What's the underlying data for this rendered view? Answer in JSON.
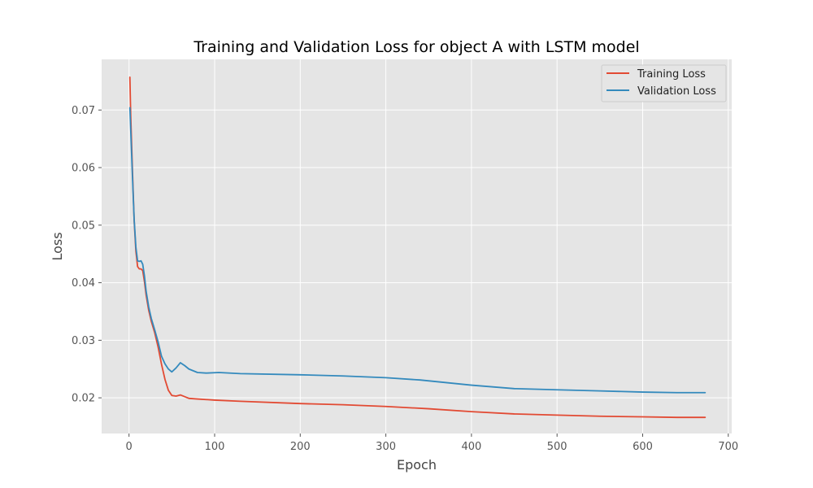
{
  "chart_data": {
    "type": "line",
    "title": "Training and Validation Loss for object A with LSTM model",
    "xlabel": "Epoch",
    "ylabel": "Loss",
    "xlim": [
      -32,
      704
    ],
    "ylim": [
      0.0138,
      0.0788
    ],
    "xticks": [
      0,
      100,
      200,
      300,
      400,
      500,
      600,
      700
    ],
    "xtick_labels": [
      "0",
      "100",
      "200",
      "300",
      "400",
      "500",
      "600",
      "700"
    ],
    "yticks": [
      0.02,
      0.03,
      0.04,
      0.05,
      0.06,
      0.07
    ],
    "ytick_labels": [
      "0.02",
      "0.03",
      "0.04",
      "0.05",
      "0.06",
      "0.07"
    ],
    "grid": true,
    "legend_position": "top-right",
    "series": [
      {
        "name": "Training Loss",
        "color": "#E24A33",
        "points": [
          [
            1,
            0.0757
          ],
          [
            2,
            0.069
          ],
          [
            4,
            0.0595
          ],
          [
            6,
            0.0508
          ],
          [
            8,
            0.0455
          ],
          [
            10,
            0.0428
          ],
          [
            12,
            0.0424
          ],
          [
            14,
            0.0424
          ],
          [
            16,
            0.0421
          ],
          [
            18,
            0.0402
          ],
          [
            20,
            0.0378
          ],
          [
            23,
            0.0352
          ],
          [
            26,
            0.0333
          ],
          [
            30,
            0.0313
          ],
          [
            34,
            0.0288
          ],
          [
            38,
            0.0258
          ],
          [
            42,
            0.0232
          ],
          [
            46,
            0.0213
          ],
          [
            50,
            0.0204
          ],
          [
            55,
            0.0203
          ],
          [
            60,
            0.0205
          ],
          [
            65,
            0.0202
          ],
          [
            70,
            0.0199
          ],
          [
            80,
            0.0198
          ],
          [
            100,
            0.0196
          ],
          [
            130,
            0.0194
          ],
          [
            200,
            0.019
          ],
          [
            250,
            0.0188
          ],
          [
            300,
            0.0185
          ],
          [
            350,
            0.0181
          ],
          [
            400,
            0.0176
          ],
          [
            450,
            0.0172
          ],
          [
            500,
            0.017
          ],
          [
            550,
            0.0168
          ],
          [
            600,
            0.0167
          ],
          [
            640,
            0.0166
          ],
          [
            673,
            0.0166
          ]
        ]
      },
      {
        "name": "Validation Loss",
        "color": "#348ABD",
        "points": [
          [
            1,
            0.0704
          ],
          [
            2,
            0.0665
          ],
          [
            4,
            0.0585
          ],
          [
            6,
            0.051
          ],
          [
            8,
            0.0462
          ],
          [
            10,
            0.0438
          ],
          [
            12,
            0.0437
          ],
          [
            14,
            0.0438
          ],
          [
            16,
            0.0432
          ],
          [
            18,
            0.0412
          ],
          [
            20,
            0.0385
          ],
          [
            23,
            0.0358
          ],
          [
            26,
            0.0338
          ],
          [
            30,
            0.0318
          ],
          [
            34,
            0.0297
          ],
          [
            38,
            0.0272
          ],
          [
            42,
            0.0259
          ],
          [
            46,
            0.025
          ],
          [
            50,
            0.0245
          ],
          [
            55,
            0.0252
          ],
          [
            60,
            0.0261
          ],
          [
            65,
            0.0256
          ],
          [
            70,
            0.025
          ],
          [
            80,
            0.0244
          ],
          [
            90,
            0.0243
          ],
          [
            105,
            0.0244
          ],
          [
            130,
            0.0242
          ],
          [
            200,
            0.024
          ],
          [
            250,
            0.0238
          ],
          [
            300,
            0.0235
          ],
          [
            340,
            0.0231
          ],
          [
            400,
            0.0222
          ],
          [
            450,
            0.0216
          ],
          [
            500,
            0.0214
          ],
          [
            550,
            0.0212
          ],
          [
            600,
            0.021
          ],
          [
            640,
            0.0209
          ],
          [
            673,
            0.0209
          ]
        ]
      }
    ]
  }
}
